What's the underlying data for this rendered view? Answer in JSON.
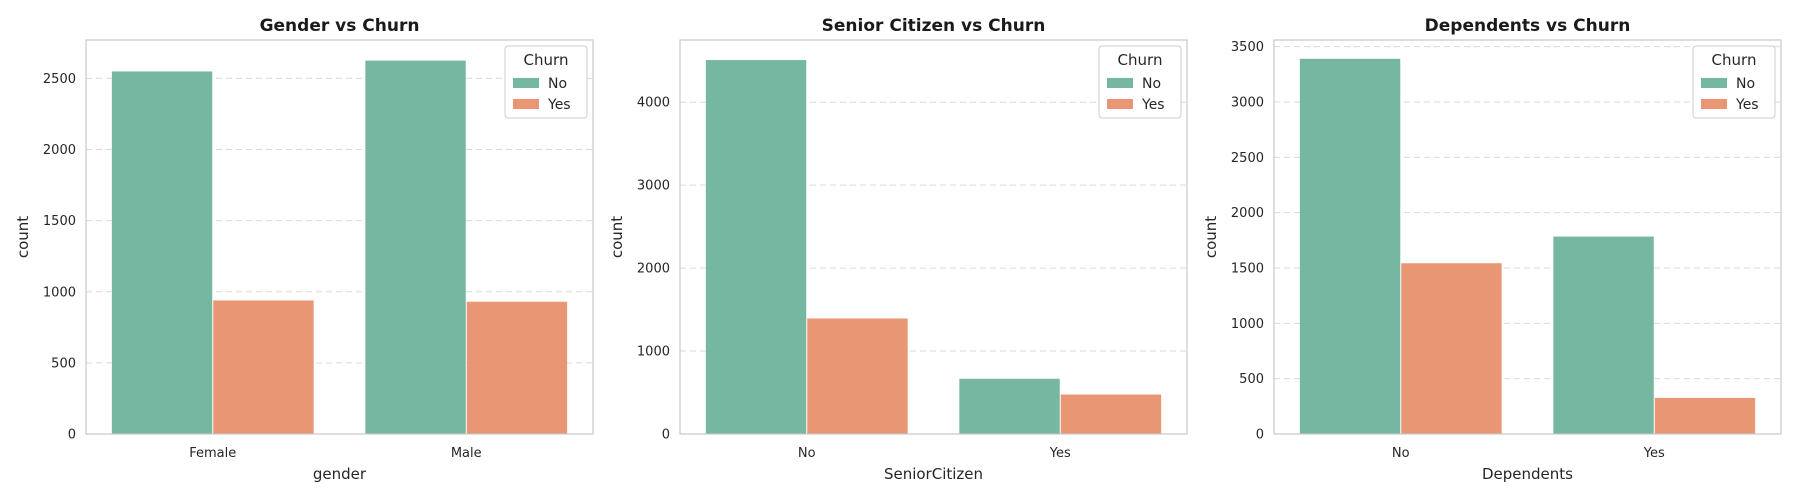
{
  "colors": {
    "no": "#75b7a0",
    "yes": "#e99675",
    "grid": "#d9d9d9",
    "frame": "#c8c8c8"
  },
  "chart_data": [
    {
      "type": "bar",
      "title": "Gender vs Churn",
      "xlabel": "gender",
      "ylabel": "count",
      "categories": [
        "Female",
        "Male"
      ],
      "ylim": [
        0,
        2770
      ],
      "yticks": [
        0,
        500,
        1000,
        1500,
        2000,
        2500
      ],
      "legend": {
        "title": "Churn",
        "placement": "top-right"
      },
      "series": [
        {
          "name": "No",
          "values": [
            2549,
            2625
          ]
        },
        {
          "name": "Yes",
          "values": [
            939,
            930
          ]
        }
      ],
      "grid": true
    },
    {
      "type": "bar",
      "title": "Senior Citizen vs Churn",
      "xlabel": "SeniorCitizen",
      "ylabel": "count",
      "categories": [
        "No",
        "Yes"
      ],
      "ylim": [
        0,
        4750
      ],
      "yticks": [
        0,
        1000,
        2000,
        3000,
        4000
      ],
      "legend": {
        "title": "Churn",
        "placement": "top-right"
      },
      "series": [
        {
          "name": "No",
          "values": [
            4508,
            666
          ]
        },
        {
          "name": "Yes",
          "values": [
            1393,
            476
          ]
        }
      ],
      "grid": true
    },
    {
      "type": "bar",
      "title": "Dependents vs Churn",
      "xlabel": "Dependents",
      "ylabel": "count",
      "categories": [
        "No",
        "Yes"
      ],
      "ylim": [
        0,
        3560
      ],
      "yticks": [
        0,
        500,
        1000,
        1500,
        2000,
        2500,
        3000,
        3500
      ],
      "legend": {
        "title": "Churn",
        "placement": "top-right"
      },
      "series": [
        {
          "name": "No",
          "values": [
            3390,
            1784
          ]
        },
        {
          "name": "Yes",
          "values": [
            1543,
            326
          ]
        }
      ],
      "grid": true
    }
  ]
}
